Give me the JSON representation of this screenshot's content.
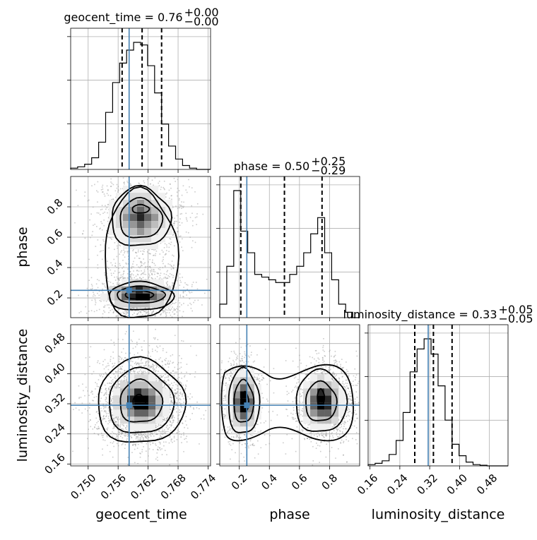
{
  "chart_data": {
    "type": "corner",
    "parameters": [
      "geocent_time",
      "phase",
      "luminosity_distance"
    ],
    "titles": {
      "geocent_time": {
        "prefix": "geocent_time = ",
        "median": "0.76",
        "plus": "+0.00",
        "minus": "−0.00"
      },
      "phase": {
        "prefix": "phase = ",
        "median": "0.50",
        "plus": "+0.25",
        "minus": "−0.29"
      },
      "luminosity_distance": {
        "prefix": "luminosity_distance = ",
        "median": "0.33",
        "plus": "+0.05",
        "minus": "−0.05"
      }
    },
    "ranges": {
      "geocent_time": [
        0.7465,
        0.7745
      ],
      "phase": [
        0.07,
        1.0
      ],
      "luminosity_distance": [
        0.155,
        0.53
      ]
    },
    "ticks": {
      "geocent_time": [
        "0.750",
        "0.756",
        "0.762",
        "0.768",
        "0.774"
      ],
      "phase": [
        "0.2",
        "0.4",
        "0.6",
        "0.8"
      ],
      "luminosity_distance": [
        "0.16",
        "0.24",
        "0.32",
        "0.40",
        "0.48"
      ]
    },
    "truths": {
      "geocent_time": 0.7582,
      "phase": 0.25,
      "luminosity_distance": 0.316
    },
    "quantiles": {
      "geocent_time": [
        0.7568,
        0.7608,
        0.7647
      ],
      "phase": [
        0.21,
        0.5,
        0.75
      ],
      "luminosity_distance": [
        0.28,
        0.33,
        0.38
      ]
    },
    "histograms": {
      "geocent_time": {
        "edges": [
          0.7465,
          0.7479,
          0.7493,
          0.7507,
          0.7521,
          0.7535,
          0.7549,
          0.7563,
          0.7577,
          0.7591,
          0.7605,
          0.7619,
          0.7633,
          0.7647,
          0.7661,
          0.7675,
          0.7689,
          0.7703,
          0.7717,
          0.7731,
          0.7745
        ],
        "counts": [
          1,
          2,
          4,
          9,
          21,
          44,
          67,
          82,
          92,
          98,
          96,
          80,
          59,
          35,
          18,
          8,
          3,
          1,
          0,
          0
        ]
      },
      "phase": {
        "edges": [
          0.07,
          0.1165,
          0.163,
          0.2095,
          0.256,
          0.3025,
          0.349,
          0.3955,
          0.442,
          0.4885,
          0.535,
          0.5815,
          0.628,
          0.6745,
          0.721,
          0.7675,
          0.814,
          0.8605,
          0.907,
          0.9535,
          1.0
        ],
        "counts": [
          10,
          38,
          94,
          64,
          48,
          32,
          30,
          28,
          26,
          26,
          32,
          38,
          48,
          62,
          74,
          48,
          28,
          10,
          4,
          0
        ]
      },
      "luminosity_distance": {
        "edges": [
          0.155,
          0.17375,
          0.1925,
          0.21125,
          0.23,
          0.24875,
          0.2675,
          0.28625,
          0.305,
          0.32375,
          0.3425,
          0.36125,
          0.38,
          0.39875,
          0.4175,
          0.43625,
          0.455,
          0.47375,
          0.4925,
          0.51125,
          0.53
        ],
        "counts": [
          1,
          2,
          4,
          9,
          20,
          42,
          74,
          92,
          100,
          88,
          63,
          36,
          17,
          8,
          3,
          1,
          0.5,
          0,
          0,
          0
        ]
      }
    },
    "xlabels": [
      "geocent_time",
      "phase",
      "luminosity_distance"
    ],
    "ylabels": [
      "",
      "phase",
      "luminosity_distance"
    ]
  }
}
